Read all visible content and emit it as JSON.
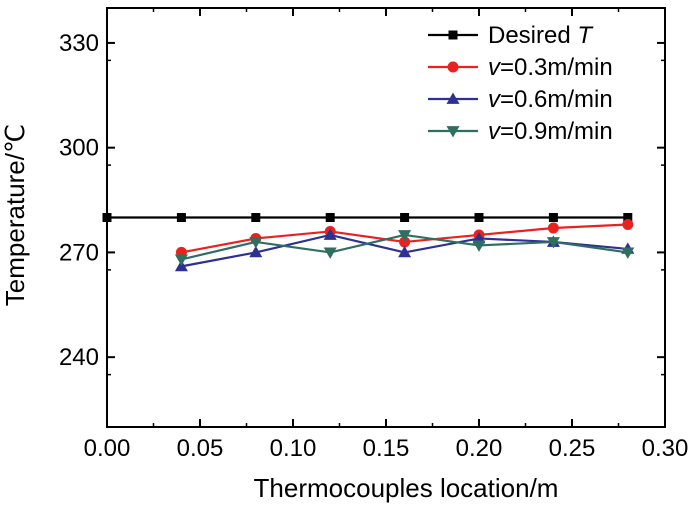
{
  "chart_data": {
    "type": "line",
    "title": "",
    "xlabel": "Thermocouples location/m",
    "ylabel": "Temperature/℃",
    "xlim": [
      0.0,
      0.3
    ],
    "ylim": [
      220,
      340
    ],
    "x_ticks": [
      0.0,
      0.05,
      0.1,
      0.15,
      0.2,
      0.25,
      0.3
    ],
    "x_tick_labels": [
      "0.00",
      "0.05",
      "0.10",
      "0.15",
      "0.20",
      "0.25",
      "0.30"
    ],
    "y_ticks": [
      240,
      270,
      300,
      330
    ],
    "y_tick_labels": [
      "240",
      "270",
      "300",
      "330"
    ],
    "grid": false,
    "legend_position": "top-right",
    "series": [
      {
        "name": "Desired T",
        "legend_prefix": "Desired ",
        "legend_italic": "T",
        "legend_suffix": "",
        "color": "#000000",
        "marker": "square",
        "x": [
          0.0,
          0.04,
          0.08,
          0.12,
          0.16,
          0.2,
          0.24,
          0.28
        ],
        "values": [
          280,
          280,
          280,
          280,
          280,
          280,
          280,
          280
        ]
      },
      {
        "name": "v=0.3m/min",
        "legend_prefix": "",
        "legend_italic": "v",
        "legend_suffix": "=0.3m/min",
        "color": "#e8231f",
        "marker": "circle",
        "x": [
          0.04,
          0.08,
          0.12,
          0.16,
          0.2,
          0.24,
          0.28
        ],
        "values": [
          270,
          274,
          276,
          273,
          275,
          277,
          278
        ]
      },
      {
        "name": "v=0.6m/min",
        "legend_prefix": "",
        "legend_italic": "v",
        "legend_suffix": "=0.6m/min",
        "color": "#2e3192",
        "marker": "triangle-up",
        "x": [
          0.04,
          0.08,
          0.12,
          0.16,
          0.2,
          0.24,
          0.28
        ],
        "values": [
          266,
          270,
          275,
          270,
          274,
          273,
          271
        ]
      },
      {
        "name": "v=0.9m/min",
        "legend_prefix": "",
        "legend_italic": "v",
        "legend_suffix": "=0.9m/min",
        "color": "#2f6f62",
        "marker": "triangle-down",
        "x": [
          0.04,
          0.08,
          0.12,
          0.16,
          0.2,
          0.24,
          0.28
        ],
        "values": [
          268,
          273,
          270,
          275,
          272,
          273,
          270
        ]
      }
    ]
  }
}
